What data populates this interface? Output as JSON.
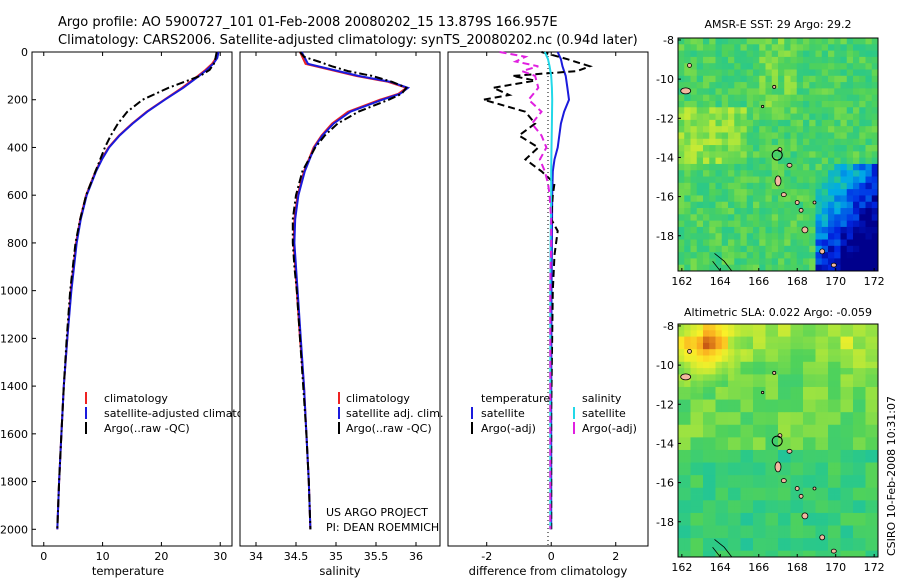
{
  "header": {
    "line1": "Argo profile: AO 5900727_101 01-Feb-2008 20080202_15 13.879S 166.957E",
    "line2": "Climatology: CARS2006. Satellite-adjusted climatology: synTS_20080202.nc (0.94d later)"
  },
  "colors": {
    "climatology": "#ee2222",
    "satellite": "#1a1adc",
    "argo": "#000000",
    "sal_satellite": "#22d8e8",
    "sal_argo": "#e020e0"
  },
  "chart_data": [
    {
      "type": "line",
      "name": "temperature-profile",
      "xlabel": "temperature",
      "ylabel": "",
      "xlim": [
        -2,
        32
      ],
      "ylim": [
        2000,
        0
      ],
      "xticks": [
        "0",
        "10",
        "20",
        "30"
      ],
      "yticks": [
        "0",
        "200",
        "400",
        "600",
        "800",
        "1000",
        "1200",
        "1400",
        "1600",
        "1800",
        "2000"
      ],
      "series": [
        {
          "name": "climatology",
          "style": "solid",
          "color": "#ee2222",
          "depth": [
            0,
            25,
            50,
            75,
            100,
            150,
            200,
            250,
            300,
            350,
            400,
            450,
            500,
            600,
            700,
            800,
            1000,
            1200,
            1400,
            1600,
            1800,
            2000
          ],
          "values": [
            29.5,
            29.3,
            28.6,
            27.5,
            26.2,
            23.5,
            20.5,
            17.5,
            15.0,
            12.8,
            11.0,
            9.8,
            8.8,
            7.2,
            6.2,
            5.5,
            4.6,
            4.0,
            3.4,
            3.0,
            2.6,
            2.3
          ]
        },
        {
          "name": "satellite-adjusted climatology",
          "style": "solid",
          "color": "#1a1adc",
          "depth": [
            0,
            25,
            50,
            75,
            100,
            150,
            200,
            250,
            300,
            350,
            400,
            450,
            500,
            600,
            700,
            800,
            1000,
            1200,
            1400,
            1600,
            1800,
            2000
          ],
          "values": [
            29.7,
            29.5,
            28.8,
            27.7,
            26.4,
            23.7,
            20.6,
            17.6,
            15.1,
            12.9,
            11.1,
            9.9,
            8.9,
            7.3,
            6.3,
            5.6,
            4.7,
            4.0,
            3.4,
            3.0,
            2.6,
            2.3
          ]
        },
        {
          "name": "Argo(..raw -QC)",
          "style": "dash-dot",
          "color": "#000000",
          "depth": [
            0,
            25,
            50,
            75,
            100,
            150,
            200,
            250,
            300,
            350,
            400,
            450,
            500,
            600,
            700,
            800,
            1000,
            1200,
            1400,
            1600,
            1800,
            2000
          ],
          "values": [
            29.4,
            29.2,
            28.9,
            28.2,
            26.6,
            21.2,
            16.8,
            14.2,
            12.6,
            11.4,
            10.4,
            9.6,
            8.8,
            7.2,
            6.2,
            5.4,
            4.5,
            3.9,
            3.4,
            3.0,
            2.6,
            2.3
          ]
        }
      ],
      "legend": [
        "climatology",
        "satellite-adjusted climatology",
        "Argo(..raw -QC)"
      ]
    },
    {
      "type": "line",
      "name": "salinity-profile",
      "xlabel": "salinity",
      "xlim": [
        33.8,
        36.3
      ],
      "ylim": [
        2000,
        0
      ],
      "xticks": [
        "34",
        "34.5",
        "35",
        "35.5",
        "36"
      ],
      "series": [
        {
          "name": "climatology",
          "style": "solid",
          "color": "#ee2222",
          "depth": [
            0,
            50,
            100,
            125,
            150,
            175,
            200,
            250,
            300,
            350,
            400,
            500,
            600,
            700,
            800,
            900,
            1000,
            1200,
            1400,
            1600,
            1800,
            2000
          ],
          "values": [
            34.55,
            34.62,
            35.25,
            35.65,
            35.88,
            35.78,
            35.55,
            35.15,
            34.95,
            34.82,
            34.72,
            34.6,
            34.52,
            34.48,
            34.47,
            34.49,
            34.51,
            34.55,
            34.6,
            34.63,
            34.66,
            34.68
          ]
        },
        {
          "name": "satellite adj. clim.",
          "style": "solid",
          "color": "#1a1adc",
          "depth": [
            0,
            50,
            100,
            125,
            150,
            175,
            200,
            250,
            300,
            350,
            400,
            500,
            600,
            700,
            800,
            900,
            1000,
            1200,
            1400,
            1600,
            1800,
            2000
          ],
          "values": [
            34.57,
            34.65,
            35.28,
            35.68,
            35.9,
            35.8,
            35.58,
            35.18,
            34.97,
            34.83,
            34.73,
            34.61,
            34.53,
            34.49,
            34.48,
            34.5,
            34.52,
            34.56,
            34.6,
            34.63,
            34.66,
            34.68
          ]
        },
        {
          "name": "Argo(..raw -QC)",
          "style": "dash-dot",
          "color": "#000000",
          "depth": [
            0,
            20,
            40,
            60,
            80,
            100,
            125,
            150,
            175,
            200,
            250,
            300,
            350,
            400,
            500,
            600,
            700,
            800,
            900,
            1000,
            1200,
            1400,
            1600,
            1800,
            2000
          ],
          "values": [
            34.55,
            34.6,
            34.78,
            34.95,
            35.15,
            35.45,
            35.7,
            35.88,
            35.82,
            35.66,
            35.28,
            35.02,
            34.86,
            34.74,
            34.58,
            34.5,
            34.46,
            34.46,
            34.48,
            34.51,
            34.55,
            34.59,
            34.63,
            34.66,
            34.68
          ]
        }
      ],
      "legend": [
        "climatology",
        "satellite adj. clim.",
        "Argo(..raw -QC)"
      ],
      "annotation": [
        "US ARGO PROJECT",
        "PI: DEAN ROEMMICH"
      ]
    },
    {
      "type": "line",
      "name": "difference-profile",
      "xlabel": "difference from climatology",
      "xlim": [
        -3.2,
        3.0
      ],
      "ylim": [
        2000,
        0
      ],
      "xticks": [
        "-2",
        "0",
        "2"
      ],
      "series": [
        {
          "name": "temperature satellite",
          "style": "solid",
          "color": "#1a1adc",
          "depth": [
            0,
            30,
            60,
            100,
            150,
            200,
            250,
            300,
            350,
            400,
            450,
            500,
            600,
            800,
            1000,
            1500,
            2000
          ],
          "values": [
            0.2,
            0.3,
            0.35,
            0.45,
            0.5,
            0.55,
            0.4,
            0.3,
            0.25,
            0.2,
            0.1,
            0.05,
            0.03,
            0.02,
            0.01,
            0.0,
            0.0
          ]
        },
        {
          "name": "temperature Argo(-adj)",
          "style": "dashed",
          "color": "#000000",
          "depth": [
            0,
            30,
            60,
            80,
            100,
            120,
            150,
            180,
            200,
            250,
            300,
            350,
            400,
            450,
            500,
            550,
            600,
            700,
            750,
            800,
            850,
            1000,
            1500,
            2000
          ],
          "values": [
            -0.3,
            0.5,
            1.2,
            0.8,
            -1.2,
            -0.5,
            -1.8,
            -1.3,
            -2.1,
            -0.8,
            -0.5,
            -1.0,
            -0.4,
            -0.8,
            -0.3,
            0.1,
            0.05,
            0.0,
            0.2,
            0.15,
            0.1,
            0.05,
            0.0,
            0.0
          ]
        },
        {
          "name": "salinity satellite",
          "style": "solid",
          "color": "#22d8e8",
          "depth": [
            0,
            30,
            60,
            100,
            150,
            200,
            300,
            400,
            500,
            600,
            800,
            1000,
            1500,
            2000
          ],
          "values": [
            -0.2,
            -0.1,
            -0.05,
            0.0,
            0.02,
            0.03,
            0.02,
            0.01,
            0.0,
            0.0,
            -0.02,
            -0.03,
            -0.03,
            -0.03
          ]
        },
        {
          "name": "salinity Argo(-adj)",
          "style": "dashed",
          "color": "#e020e0",
          "depth": [
            0,
            20,
            40,
            60,
            80,
            100,
            150,
            200,
            250,
            300,
            350,
            400,
            450,
            500,
            550,
            600,
            700,
            800,
            900,
            1000,
            1500,
            2000
          ],
          "values": [
            -1.6,
            -0.8,
            -1.1,
            -0.4,
            -0.9,
            -0.5,
            -0.4,
            -0.7,
            -0.3,
            -0.6,
            -0.3,
            -0.15,
            -0.35,
            -0.2,
            -0.1,
            -0.05,
            0.0,
            0.0,
            -0.02,
            -0.03,
            -0.03,
            -0.03
          ]
        }
      ],
      "legend_temperature": {
        "heading": "temperature",
        "items": [
          "satellite",
          "Argo(-adj)"
        ]
      },
      "legend_salinity": {
        "heading": "salinity",
        "items": [
          "satellite",
          "Argo(-adj)"
        ]
      }
    },
    {
      "type": "heatmap",
      "name": "amsre-sst-map",
      "title": "AMSR-E SST: 29 Argo: 29.2",
      "xlim": [
        161.8,
        172.2
      ],
      "ylim": [
        -19.8,
        -7.9
      ],
      "xticks": [
        "162",
        "164",
        "166",
        "168",
        "170",
        "172"
      ],
      "yticks": [
        "-8",
        "-10",
        "-12",
        "-14",
        "-16",
        "-18"
      ],
      "profile_location": {
        "lon": 166.957,
        "lat": -13.879
      }
    },
    {
      "type": "heatmap",
      "name": "altimetric-sla-map",
      "title": "Altimetric SLA: 0.022 Argo: -0.059",
      "xlim": [
        161.8,
        172.2
      ],
      "ylim": [
        -19.8,
        -7.9
      ],
      "xticks": [
        "162",
        "164",
        "166",
        "168",
        "170",
        "172"
      ],
      "yticks": [
        "-8",
        "-10",
        "-12",
        "-14",
        "-16",
        "-18"
      ],
      "profile_location": {
        "lon": 166.957,
        "lat": -13.879
      }
    }
  ],
  "footer": {
    "credit": "CSIRO 10-Feb-2008 10:31:07"
  }
}
